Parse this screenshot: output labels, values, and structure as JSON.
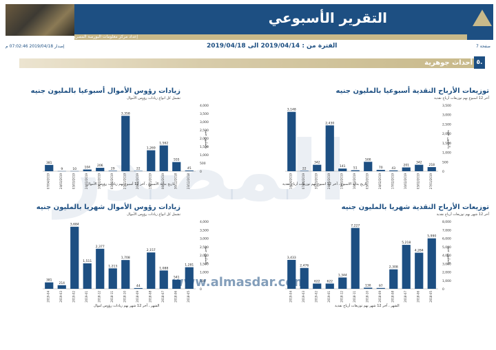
{
  "header": {
    "title": "التقرير الأسبوعي",
    "subtitle": "إعداد مركز معلومات البورصة المصرية"
  },
  "meta": {
    "page": "صفحة 7",
    "period": "الفترة من : 2019/04/14 الى 2019/04/18",
    "issue": "إصدار 2019/04/18 07:02:46 م"
  },
  "section": {
    "number": "٥.",
    "title": "أحداث جوهرية"
  },
  "watermark": {
    "url": "www.almasdar.com",
    "big": "المصدر"
  },
  "colors": {
    "bar": "#1d4f82",
    "header": "#1d4f82",
    "gold": "#c8b98a"
  },
  "panels": [
    {
      "title": "توزيعات الأرباح النقدية أسبوعيا بالمليون جنيه",
      "subtitle": "آخر 12 اسبوع بهم توزيعات أرباح نقدية",
      "xlabel": "تاريخ بداية الاسبوع ، آخر 12 اسبوع بهم توزيعات أرباح نقدية",
      "ylabel": "بالمليون جنيه"
    },
    {
      "title": "زيادات رؤوس الأموال أسبوعيا بالمليون جنيه",
      "subtitle": "تشمل كل انواع زيادات رؤوس الأموال",
      "xlabel": "تاريخ بداية الأسبوع ، آخر 12 أسبوع بهم زيادات رؤوس الأموال",
      "ylabel": "بالمليون جنيه"
    },
    {
      "title": "توزيعات الأرباح النقدية شهريا بالمليون جنيه",
      "subtitle": "آخر 12 شهر بهم توزيعات أرباح نقدية",
      "xlabel": "الشهر ، آخر 12 شهر بهم توزيعات أرباح نقدية",
      "ylabel": "بالمليون جنيه"
    },
    {
      "title": "زيادات رؤوس الأموال شهريا بالمليون جنيه",
      "subtitle": "تشمل كل انواع زيادات رؤوس الأموال",
      "xlabel": "الشهر ، آخر 12 شهر بهم زيادات رؤوس اموال",
      "ylabel": "بالمليون جنيه"
    }
  ],
  "chart_data": [
    {
      "type": "bar",
      "title": "توزيعات الأرباح النقدية أسبوعيا بالمليون جنيه",
      "categories": [
        "14/04/2019",
        "07/04/2019",
        "31/03/2019",
        "24/03/2019",
        "17/03/2019",
        "10/03/2019",
        "03/03/2019",
        "24/02/2019",
        "17/02/2019",
        "10/02/2019",
        "03/02/2019",
        "27/01/2019"
      ],
      "values": [
        3148,
        22,
        342,
        2430,
        141,
        51,
        500,
        70,
        43,
        201,
        342,
        218
      ],
      "value_labels": [
        "3,148",
        "22",
        "342",
        "2,430",
        "141",
        "51",
        "500",
        "70",
        "43",
        "201",
        "342",
        "218"
      ],
      "yticks": [
        "0",
        "500",
        "1,000",
        "1,500",
        "2,000",
        "2,500",
        "3,000",
        "3,500"
      ],
      "ylim": [
        0,
        3500
      ]
    },
    {
      "type": "bar",
      "title": "زيادات رؤوس الأموال أسبوعيا بالمليون جنيه",
      "categories": [
        "07/04/2019",
        "24/03/2019",
        "03/03/2019",
        "24/02/2019",
        "10/02/2019",
        "03/02/2019",
        "27/01/2019",
        "20/01/2019",
        "13/01/2019",
        "06/01/2019",
        "30/12/2018",
        "23/12/2018"
      ],
      "values": [
        381,
        9,
        10,
        104,
        206,
        29,
        3358,
        22,
        1269,
        1562,
        555,
        45
      ],
      "value_labels": [
        "381",
        "9",
        "10",
        "104",
        "206",
        "29",
        "3,358",
        "22",
        "1,269",
        "1,562",
        "555",
        "45"
      ],
      "yticks": [
        "0",
        "500",
        "1,000",
        "1,500",
        "2,000",
        "2,500",
        "3,000",
        "3,500",
        "4,000"
      ],
      "ylim": [
        0,
        4000
      ]
    },
    {
      "type": "bar",
      "title": "توزيعات الأرباح النقدية شهريا بالمليون جنيه",
      "categories": [
        "2019-04",
        "2019-03",
        "2019-02",
        "2019-01",
        "2018-12",
        "2018-11",
        "2018-10",
        "2018-09",
        "2018-08",
        "2018-07",
        "2018-06",
        "2018-05"
      ],
      "values": [
        3433,
        2476,
        622,
        622,
        1344,
        7227,
        130,
        97,
        2308,
        5218,
        4284,
        5990
      ],
      "value_labels": [
        "3,433",
        "2,476",
        "622",
        "622",
        "1,344",
        "7,227",
        "130",
        "97",
        "2,308",
        "5,218",
        "4,284",
        "5,990"
      ],
      "yticks": [
        "0",
        "1,000",
        "2,000",
        "3,000",
        "4,000",
        "5,000",
        "6,000",
        "7,000",
        "8,000"
      ],
      "ylim": [
        0,
        8000
      ]
    },
    {
      "type": "bar",
      "title": "زيادات رؤوس الأموال شهريا بالمليون جنيه",
      "categories": [
        "2019-04",
        "2019-03",
        "2019-02",
        "2019-01",
        "2018-12",
        "2018-11",
        "2018-10",
        "2018-09",
        "2018-08",
        "2018-07",
        "2018-06",
        "2018-05"
      ],
      "values": [
        381,
        214,
        3684,
        1511,
        2377,
        1213,
        1708,
        44,
        2157,
        1088,
        541,
        1281
      ],
      "value_labels": [
        "381",
        "214",
        "3,684",
        "1,511",
        "2,377",
        "1,213",
        "1,708",
        "44",
        "2,157",
        "1,088",
        "541",
        "1,281"
      ],
      "yticks": [
        "0",
        "500",
        "1,000",
        "1,500",
        "2,000",
        "2,500",
        "3,000",
        "3,500",
        "4,000"
      ],
      "ylim": [
        0,
        4000
      ]
    }
  ]
}
